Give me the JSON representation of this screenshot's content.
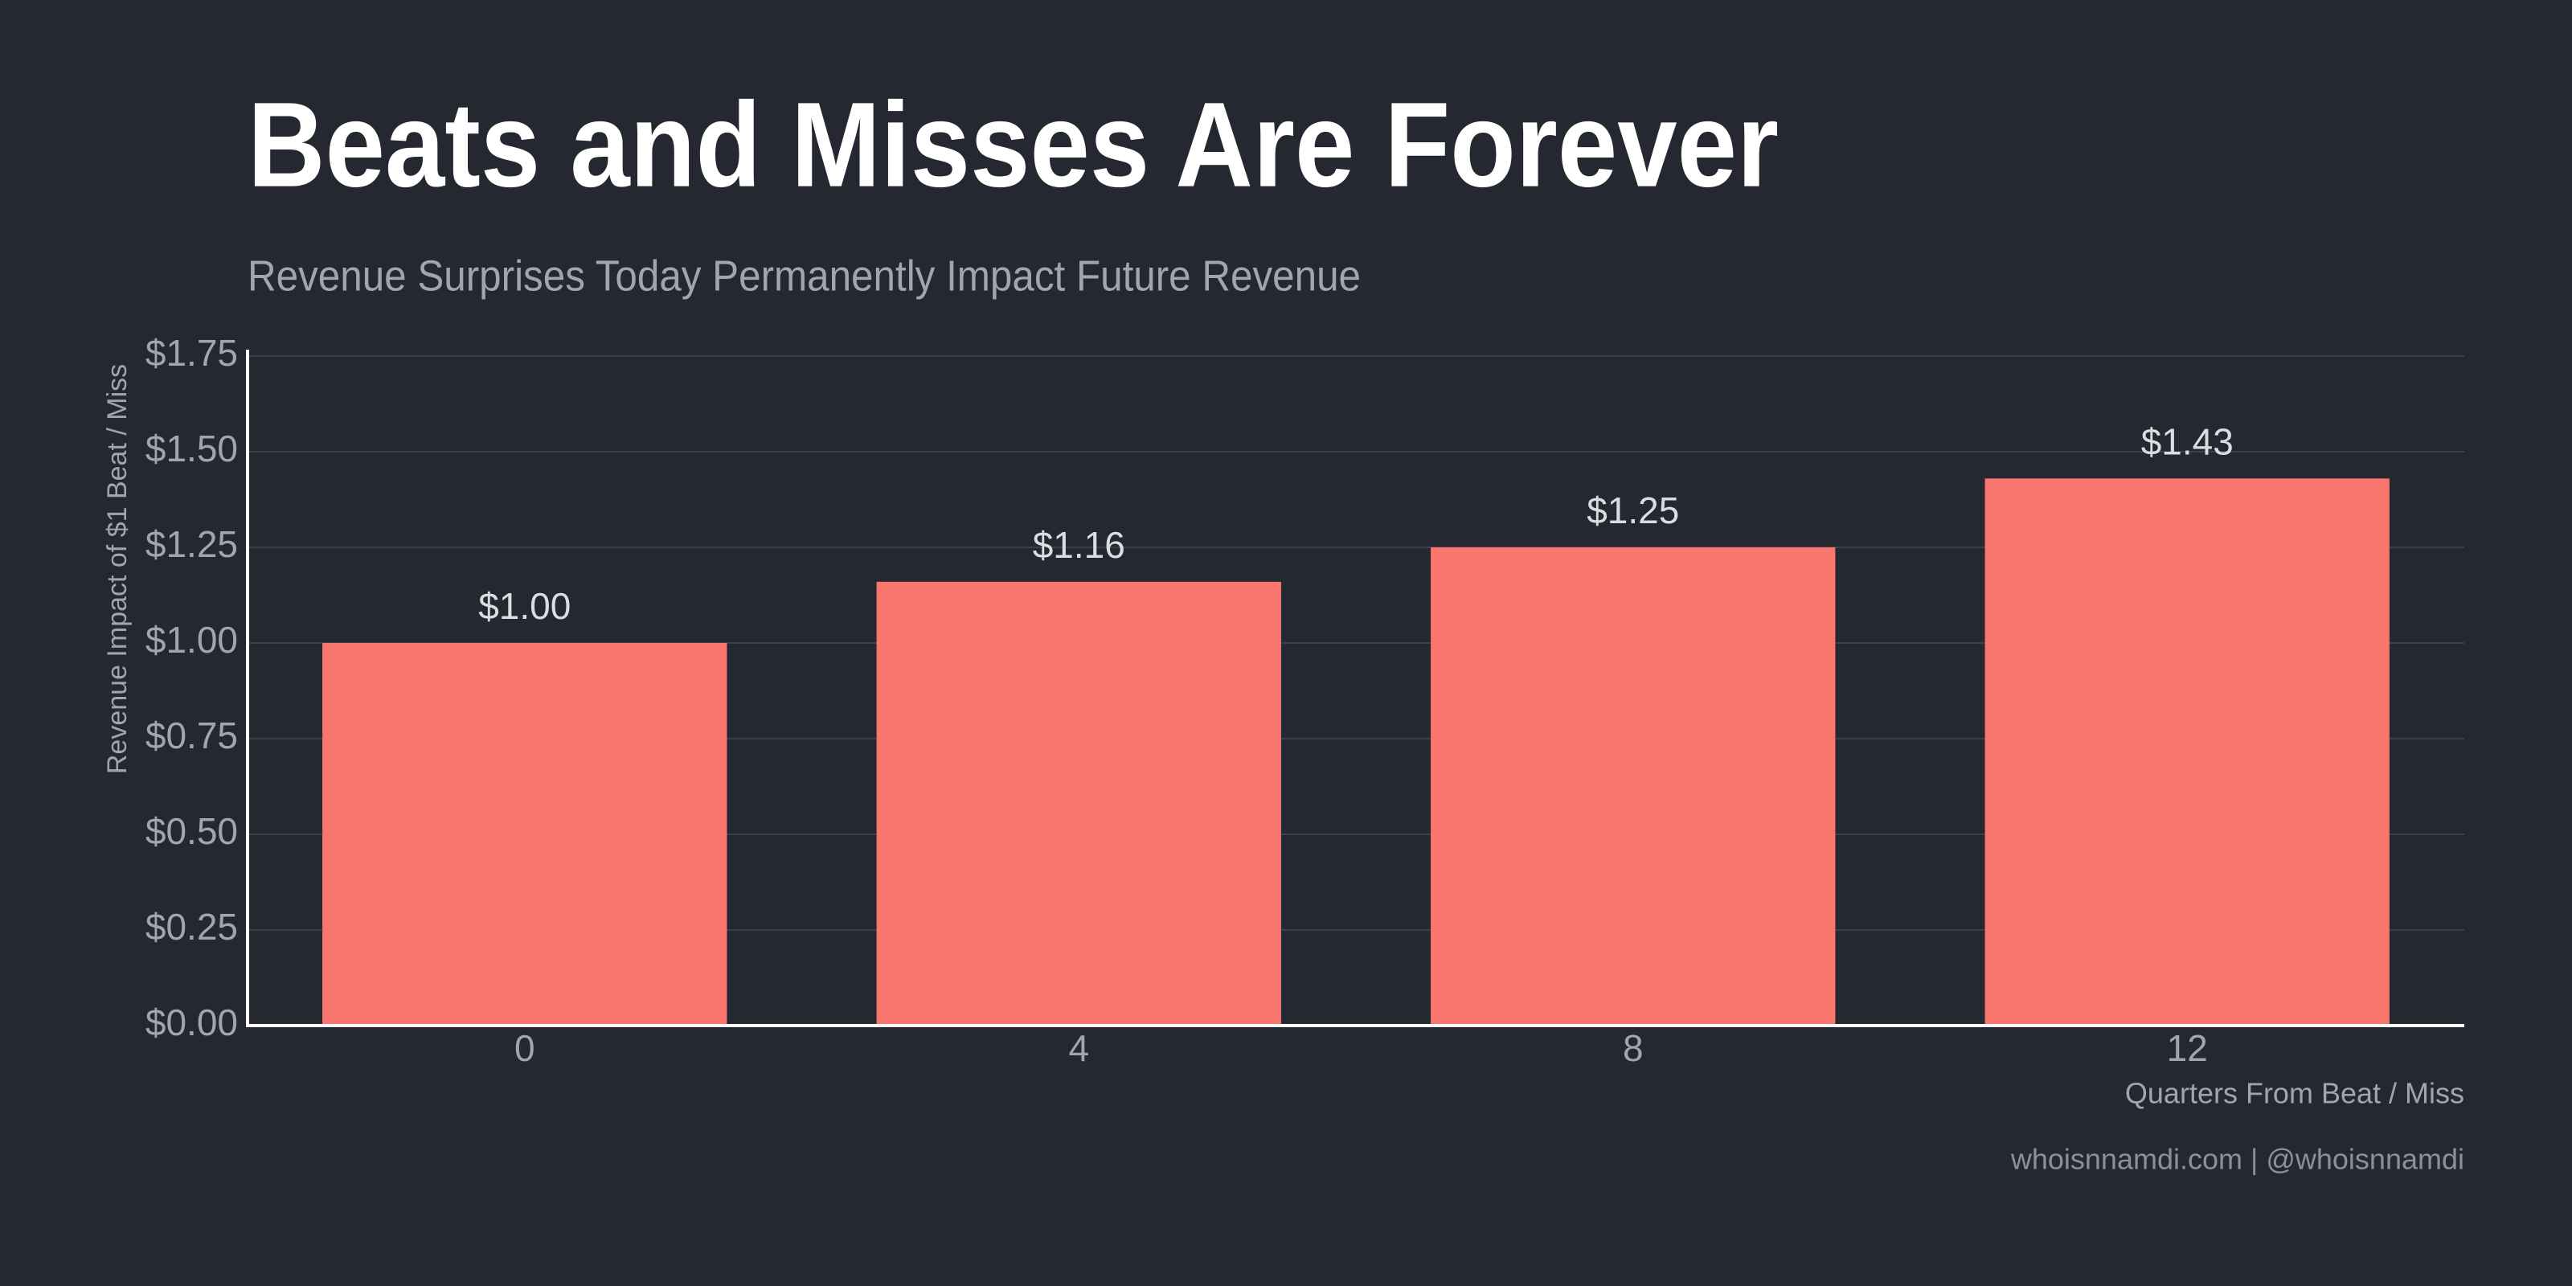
{
  "chart_data": {
    "type": "bar",
    "title": "Beats and Misses Are Forever",
    "subtitle": "Revenue Surprises Today Permanently Impact Future Revenue",
    "y_label": "Revenue Impact of $1 Beat / Miss",
    "x_label": "Quarters From Beat / Miss",
    "caption": "whoisnnamdi.com | @whoisnnamdi",
    "categories": [
      "0",
      "4",
      "8",
      "12"
    ],
    "values": [
      1.0,
      1.16,
      1.25,
      1.43
    ],
    "value_labels": [
      "$1.00",
      "$1.16",
      "$1.25",
      "$1.43"
    ],
    "color": "#f8766d",
    "ylim": [
      0,
      1.75
    ],
    "yticks": [
      {
        "value": 0,
        "label": "$0.00"
      },
      {
        "value": 0.25,
        "label": "$0.25"
      },
      {
        "value": 0.5,
        "label": "$0.50"
      },
      {
        "value": 0.75,
        "label": "$0.75"
      },
      {
        "value": 1,
        "label": "$1.00"
      },
      {
        "value": 1.25,
        "label": "$1.25"
      },
      {
        "value": 1.5,
        "label": "$1.50"
      },
      {
        "value": 1.75,
        "label": "$1.75"
      }
    ],
    "grid": true
  }
}
